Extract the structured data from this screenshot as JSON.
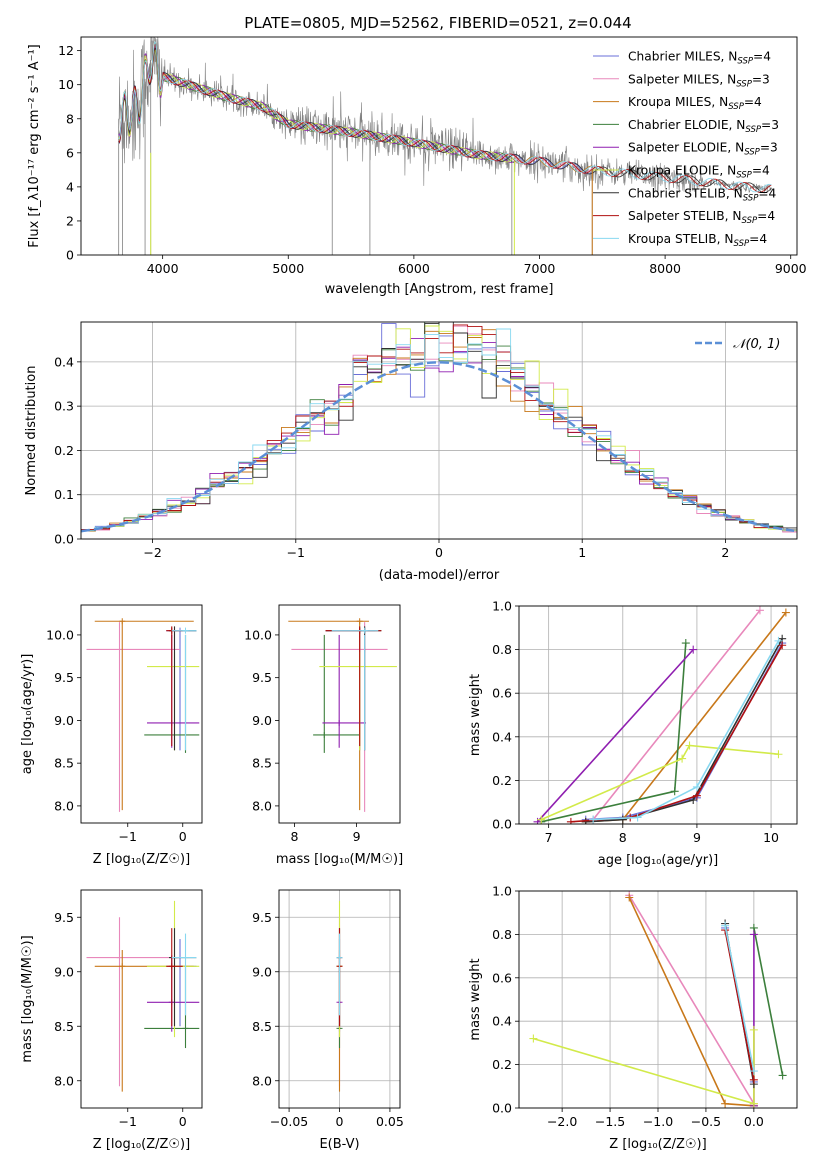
{
  "colors": {
    "Chabrier MILES": "#6a6fd8",
    "Salpeter MILES": "#e888bb",
    "Kroupa MILES": "#c8781a",
    "Chabrier ELODIE": "#3c7f3c",
    "Salpeter ELODIE": "#8f1fb0",
    "Kroupa ELODIE": "#d2ea4a",
    "Chabrier STELIB": "#303030",
    "Salpeter STELIB": "#b01010",
    "Kroupa STELIB": "#88d8f0",
    "data": "#808080",
    "gauss": "#5b8fd6"
  },
  "chart_data": [
    {
      "type": "line",
      "title": "PLATE=0805, MJD=52562, FIBERID=0521, z=0.044",
      "xlabel": "wavelength [Angstrom, rest frame]",
      "ylabel": "Flux [f_λ10⁻¹⁷ erg cm⁻² s⁻¹ A⁻¹]",
      "xlim": [
        3350,
        9050
      ],
      "ylim": [
        0,
        12.8
      ],
      "xticks": [
        4000,
        5000,
        6000,
        7000,
        8000,
        9000
      ],
      "yticks": [
        0,
        2,
        4,
        6,
        8,
        10,
        12
      ],
      "legend_position": "top-right",
      "legend": [
        {
          "model": "Chabrier MILES",
          "nssp": "4"
        },
        {
          "model": "Salpeter MILES",
          "nssp": "3"
        },
        {
          "model": "Kroupa MILES",
          "nssp": "4"
        },
        {
          "model": "Chabrier ELODIE",
          "nssp": "3"
        },
        {
          "model": "Salpeter ELODIE",
          "nssp": "3"
        },
        {
          "model": "Kroupa ELODIE",
          "nssp": "4"
        },
        {
          "model": "Chabrier STELIB",
          "nssp": "4"
        },
        {
          "model": "Salpeter STELIB",
          "nssp": "4"
        },
        {
          "model": "Kroupa STELIB",
          "nssp": "4"
        }
      ],
      "continuum": {
        "x": [
          3650,
          3800,
          3900,
          4000,
          4200,
          4500,
          4800,
          5000,
          5500,
          6000,
          6500,
          7000,
          7400,
          7800,
          8200,
          8500,
          8800
        ],
        "y": [
          8.0,
          8.6,
          11.5,
          10.5,
          10.0,
          9.3,
          8.7,
          7.7,
          7.2,
          6.6,
          5.9,
          5.5,
          5.0,
          4.7,
          4.4,
          4.1,
          3.9
        ]
      }
    },
    {
      "type": "bar",
      "xlabel": "(data-model)/error",
      "ylabel": "Normed distribution",
      "xlim": [
        -2.5,
        2.5
      ],
      "ylim": [
        0,
        0.49
      ],
      "xticks": [
        -2,
        -1,
        0,
        1,
        2
      ],
      "yticks": [
        0.0,
        0.1,
        0.2,
        0.3,
        0.4
      ],
      "grid": true,
      "bin_width": 0.1,
      "legend_position": "top-right",
      "legend_label": "𝒩(0, 1)"
    },
    {
      "type": "scatter",
      "xlabel": "Z [log₁₀(Z/Z☉)]",
      "ylabel": "age  [log₁₀(age/yr)]",
      "xlim": [
        -1.85,
        0.35
      ],
      "ylim": [
        7.8,
        10.35
      ],
      "xticks": [
        -1,
        0
      ],
      "yticks": [
        8.0,
        8.5,
        9.0,
        9.5,
        10.0
      ]
    },
    {
      "type": "scatter",
      "xlabel": "mass [log₁₀(M/M☉)]",
      "xlim": [
        7.75,
        9.7
      ],
      "ylim": [
        7.8,
        10.35
      ],
      "xticks": [
        8,
        9
      ],
      "yticks": [
        8.0,
        8.5,
        9.0,
        9.5,
        10.0
      ]
    },
    {
      "type": "line",
      "xlabel": "age  [log₁₀(age/yr)]",
      "ylabel": "mass weight",
      "xlim": [
        6.6,
        10.35
      ],
      "ylim": [
        0,
        1.0
      ],
      "xticks": [
        7,
        8,
        9,
        10
      ],
      "yticks": [
        0.0,
        0.2,
        0.4,
        0.6,
        0.8,
        1.0
      ],
      "grid": true,
      "series": [
        {
          "name": "Chabrier MILES",
          "x": [
            7.5,
            8.0,
            9.0,
            10.15
          ],
          "y": [
            0.02,
            0.03,
            0.12,
            0.83
          ]
        },
        {
          "name": "Salpeter MILES",
          "x": [
            7.6,
            9.85
          ],
          "y": [
            0.02,
            0.98
          ]
        },
        {
          "name": "Kroupa MILES",
          "x": [
            7.5,
            8.0,
            10.2
          ],
          "y": [
            0.01,
            0.02,
            0.97
          ]
        },
        {
          "name": "Chabrier ELODIE",
          "x": [
            6.9,
            8.7,
            8.85
          ],
          "y": [
            0.01,
            0.15,
            0.83
          ]
        },
        {
          "name": "Salpeter ELODIE",
          "x": [
            6.85,
            8.95
          ],
          "y": [
            0.01,
            0.8
          ]
        },
        {
          "name": "Kroupa ELODIE",
          "x": [
            6.9,
            8.8,
            8.9,
            10.1
          ],
          "y": [
            0.02,
            0.3,
            0.36,
            0.32
          ]
        },
        {
          "name": "Chabrier STELIB",
          "x": [
            7.5,
            8.0,
            8.95,
            10.15
          ],
          "y": [
            0.01,
            0.02,
            0.11,
            0.85
          ]
        },
        {
          "name": "Salpeter STELIB",
          "x": [
            7.3,
            8.1,
            9.0,
            10.15
          ],
          "y": [
            0.01,
            0.03,
            0.13,
            0.82
          ]
        },
        {
          "name": "Kroupa STELIB",
          "x": [
            7.6,
            8.2,
            9.0,
            10.1
          ],
          "y": [
            0.02,
            0.03,
            0.17,
            0.84
          ]
        }
      ]
    },
    {
      "type": "scatter",
      "xlabel": "Z [log₁₀(Z/Z☉)]",
      "ylabel": "mass [log₁₀(M/M☉)]",
      "xlim": [
        -1.85,
        0.35
      ],
      "ylim": [
        7.75,
        9.75
      ],
      "xticks": [
        -1,
        0
      ],
      "yticks": [
        8.0,
        8.5,
        9.0,
        9.5
      ]
    },
    {
      "type": "scatter",
      "xlabel": "E(B-V)",
      "xlim": [
        -0.06,
        0.06
      ],
      "ylim": [
        7.75,
        9.75
      ],
      "xticks": [
        -0.05,
        0.0,
        0.05
      ],
      "yticks": [
        8.0,
        8.5,
        9.0,
        9.5
      ],
      "grid": true
    },
    {
      "type": "line",
      "xlabel": "Z [log₁₀(Z/Z☉)]",
      "ylabel": "mass weight",
      "xlim": [
        -2.45,
        0.45
      ],
      "ylim": [
        0,
        1.0
      ],
      "xticks": [
        -2.0,
        -1.5,
        -1.0,
        -0.5,
        0.0
      ],
      "yticks": [
        0.0,
        0.2,
        0.4,
        0.6,
        0.8,
        1.0
      ],
      "grid": true,
      "series": [
        {
          "name": "Chabrier MILES",
          "x": [
            -0.3,
            0.0
          ],
          "y": [
            0.83,
            0.12
          ]
        },
        {
          "name": "Salpeter MILES",
          "x": [
            -1.3,
            0.0
          ],
          "y": [
            0.98,
            0.02
          ]
        },
        {
          "name": "Kroupa MILES",
          "x": [
            -1.3,
            -0.3,
            0.0
          ],
          "y": [
            0.97,
            0.02,
            0.01
          ]
        },
        {
          "name": "Chabrier ELODIE",
          "x": [
            0.0,
            0.3
          ],
          "y": [
            0.83,
            0.15
          ]
        },
        {
          "name": "Salpeter ELODIE",
          "x": [
            0.0,
            0.0
          ],
          "y": [
            0.8,
            0.01
          ]
        },
        {
          "name": "Kroupa ELODIE",
          "x": [
            -2.3,
            0.0,
            0.0
          ],
          "y": [
            0.32,
            0.02,
            0.36
          ]
        },
        {
          "name": "Chabrier STELIB",
          "x": [
            -0.3,
            0.0
          ],
          "y": [
            0.85,
            0.11
          ]
        },
        {
          "name": "Salpeter STELIB",
          "x": [
            -0.3,
            0.0
          ],
          "y": [
            0.82,
            0.13
          ]
        },
        {
          "name": "Kroupa STELIB",
          "x": [
            -0.3,
            0.0
          ],
          "y": [
            0.84,
            0.17
          ]
        }
      ]
    }
  ]
}
